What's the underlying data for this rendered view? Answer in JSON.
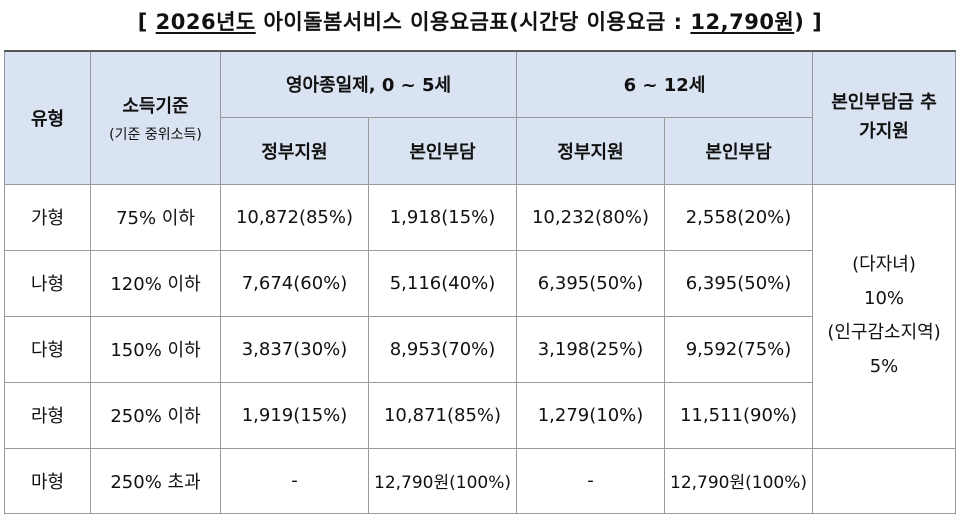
{
  "title": {
    "open": "[ ",
    "year": "2026년도",
    "middle": " 아이돌봄서비스 이용요금표(시간당 이용요금 : ",
    "fee": "12,790원",
    "close": ") ]"
  },
  "header": {
    "type": "유형",
    "income": "소득기준",
    "income_sub": "(기준 중위소득)",
    "group1": "영아종일제, 0 ~ 5세",
    "group2": "6 ~ 12세",
    "extra": "본인부담금 추가지원",
    "gov": "정부지원",
    "self": "본인부담"
  },
  "rows": [
    {
      "type": "가형",
      "income": "75% 이하",
      "g1_gov": "10,872(85%)",
      "g1_self": "1,918(15%)",
      "g2_gov": "10,232(80%)",
      "g2_self": "2,558(20%)"
    },
    {
      "type": "나형",
      "income": "120% 이하",
      "g1_gov": "7,674(60%)",
      "g1_self": "5,116(40%)",
      "g2_gov": "6,395(50%)",
      "g2_self": "6,395(50%)"
    },
    {
      "type": "다형",
      "income": "150% 이하",
      "g1_gov": "3,837(30%)",
      "g1_self": "8,953(70%)",
      "g2_gov": "3,198(25%)",
      "g2_self": "9,592(75%)"
    },
    {
      "type": "라형",
      "income": "250% 이하",
      "g1_gov": "1,919(15%)",
      "g1_self": "10,871(85%)",
      "g2_gov": "1,279(10%)",
      "g2_self": "11,511(90%)"
    },
    {
      "type": "마형",
      "income": "250% 초과",
      "g1_gov": "-",
      "g1_self": "12,790원(100%)",
      "g2_gov": "-",
      "g2_self": "12,790원(100%)"
    }
  ],
  "extra_support": {
    "line1": "(다자녀)",
    "line2": "10%",
    "line3": "(인구감소지역)",
    "line4": "5%"
  }
}
